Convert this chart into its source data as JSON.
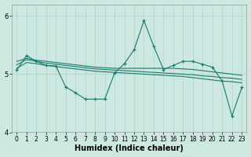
{
  "xlabel": "Humidex (Indice chaleur)",
  "background_color": "#cce8e0",
  "grid_color": "#aad4cc",
  "line_color": "#1a7a6e",
  "xlim": [
    -0.5,
    23.5
  ],
  "ylim": [
    4.0,
    6.2
  ],
  "yticks": [
    4,
    5,
    6
  ],
  "xticks": [
    0,
    1,
    2,
    3,
    4,
    5,
    6,
    7,
    8,
    9,
    10,
    11,
    12,
    13,
    14,
    15,
    16,
    17,
    18,
    19,
    20,
    21,
    22,
    23
  ],
  "series_jagged": [
    5.07,
    5.32,
    5.22,
    5.15,
    5.14,
    4.78,
    4.68,
    4.57,
    4.57,
    4.57,
    5.02,
    5.18,
    5.42,
    5.92,
    5.48,
    5.08,
    5.15,
    5.22,
    5.22,
    5.17,
    5.12,
    4.88,
    4.28,
    4.77
  ],
  "series_flat1": [
    5.22,
    5.27,
    5.24,
    5.22,
    5.2,
    5.18,
    5.16,
    5.14,
    5.12,
    5.11,
    5.1,
    5.1,
    5.1,
    5.1,
    5.1,
    5.1,
    5.1,
    5.09,
    5.08,
    5.06,
    5.04,
    5.02,
    5.0,
    4.98
  ],
  "series_flat2": [
    5.16,
    5.25,
    5.22,
    5.19,
    5.17,
    5.15,
    5.13,
    5.11,
    5.09,
    5.08,
    5.07,
    5.06,
    5.05,
    5.04,
    5.03,
    5.02,
    5.01,
    5.0,
    4.99,
    4.97,
    4.96,
    4.94,
    4.93,
    4.91
  ],
  "series_flat3": [
    5.1,
    5.2,
    5.18,
    5.15,
    5.13,
    5.11,
    5.09,
    5.07,
    5.05,
    5.04,
    5.03,
    5.02,
    5.01,
    5.0,
    4.99,
    4.98,
    4.97,
    4.96,
    4.94,
    4.92,
    4.9,
    4.88,
    4.87,
    4.85
  ]
}
